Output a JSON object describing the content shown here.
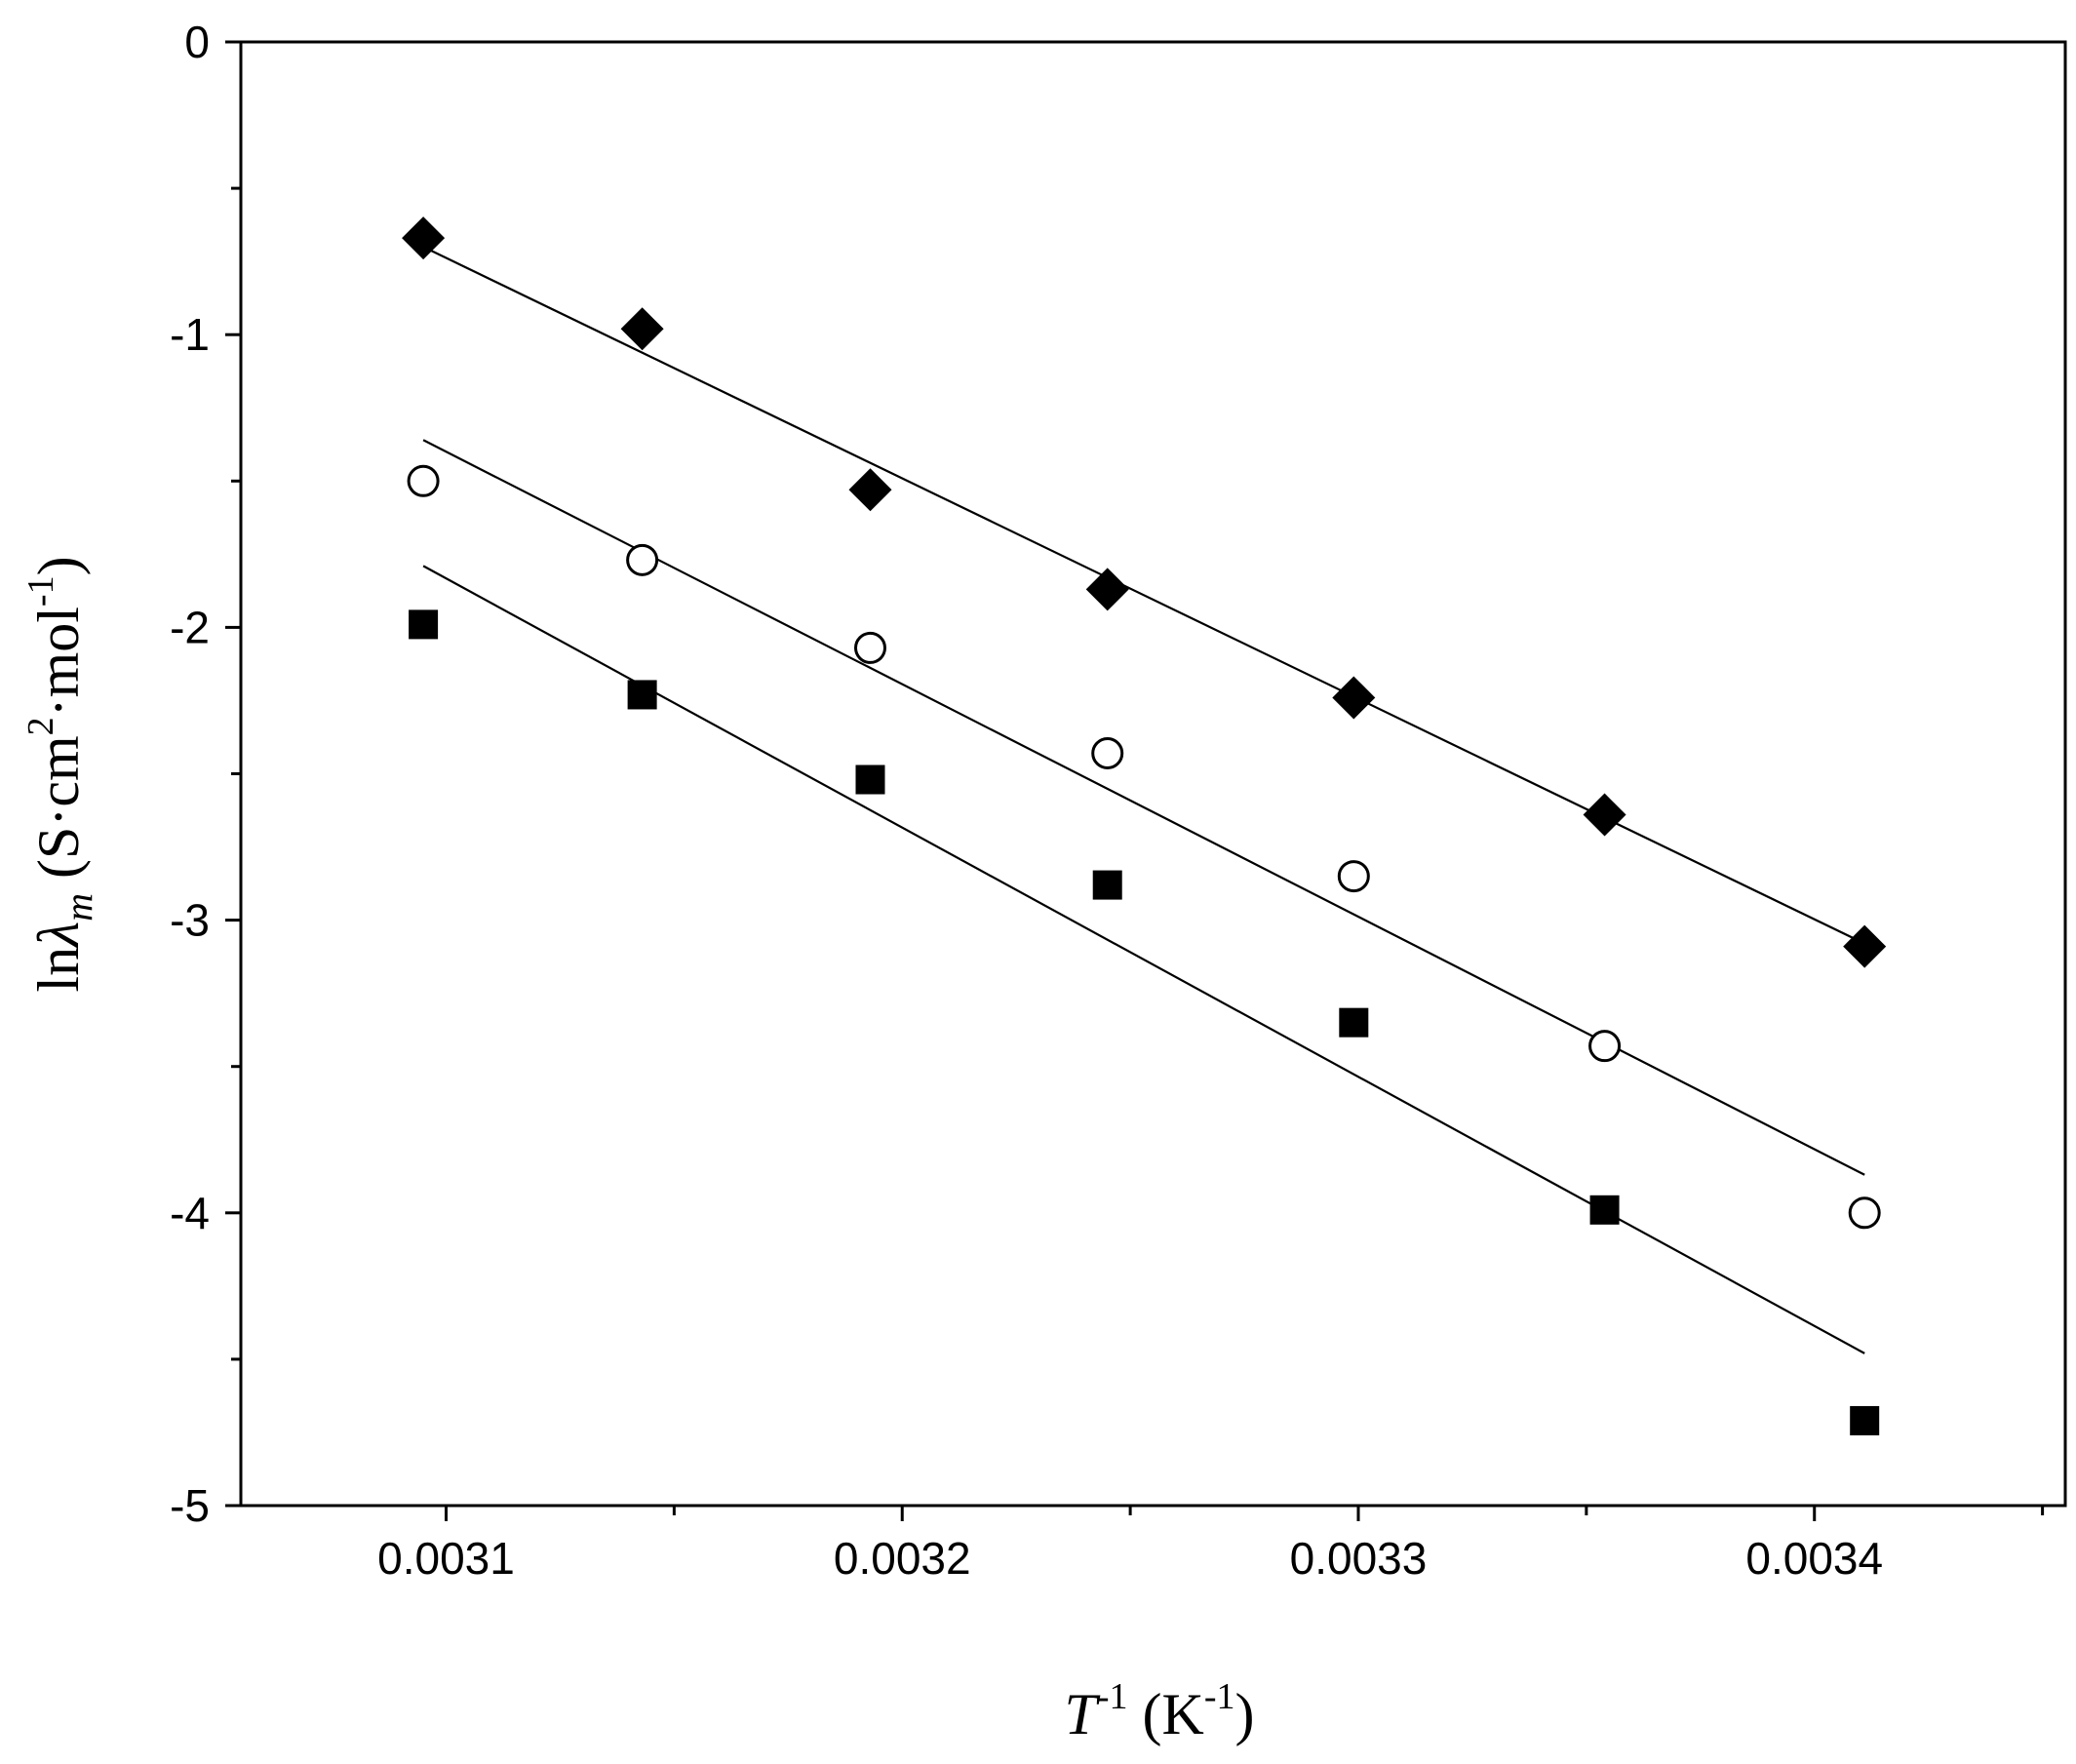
{
  "chart_data": {
    "type": "scatter",
    "title": "",
    "xlabel": {
      "base": "T",
      "sup1": "-1",
      "mid": " (K",
      "sup2": "-1",
      "end": ")"
    },
    "ylabel": {
      "pre": "ln",
      "lambda": "λ",
      "sub": "m",
      "mid": " (S·cm",
      "sup1": "2",
      "mid2": "·mol",
      "sup2": "-1",
      "end": ")"
    },
    "xlim": [
      0.003055,
      0.003455
    ],
    "ylim": [
      -5,
      0
    ],
    "xticks": [
      {
        "value": 0.0031,
        "label": "0.0031"
      },
      {
        "value": 0.0032,
        "label": "0.0032"
      },
      {
        "value": 0.0033,
        "label": "0.0033"
      },
      {
        "value": 0.0034,
        "label": "0.0034"
      }
    ],
    "yticks": [
      {
        "value": 0,
        "label": "0"
      },
      {
        "value": -1,
        "label": "-1"
      },
      {
        "value": -2,
        "label": "-2"
      },
      {
        "value": -3,
        "label": "-3"
      },
      {
        "value": -4,
        "label": "-4"
      },
      {
        "value": -5,
        "label": "-5"
      }
    ],
    "series": [
      {
        "marker": "diamond-filled",
        "x": [
          0.003095,
          0.003143,
          0.003193,
          0.003245,
          0.003299,
          0.003354,
          0.003411
        ],
        "y": [
          -0.67,
          -0.98,
          -1.53,
          -1.87,
          -2.24,
          -2.64,
          -3.09
        ],
        "fit": {
          "x": [
            0.003095,
            0.003411
          ],
          "y": [
            -0.7,
            -3.08
          ]
        }
      },
      {
        "marker": "circle-open",
        "x": [
          0.003095,
          0.003143,
          0.003193,
          0.003245,
          0.003299,
          0.003354,
          0.003411
        ],
        "y": [
          -1.5,
          -1.77,
          -2.07,
          -2.43,
          -2.85,
          -3.43,
          -4.0
        ],
        "fit": {
          "x": [
            0.003095,
            0.003411
          ],
          "y": [
            -1.36,
            -3.87
          ]
        }
      },
      {
        "marker": "square-filled",
        "x": [
          0.003095,
          0.003143,
          0.003193,
          0.003245,
          0.003299,
          0.003354,
          0.003411
        ],
        "y": [
          -1.99,
          -2.23,
          -2.52,
          -2.88,
          -3.35,
          -3.99,
          -4.71
        ],
        "fit": {
          "x": [
            0.003095,
            0.003411
          ],
          "y": [
            -1.79,
            -4.48
          ]
        }
      }
    ],
    "grid": false,
    "colors": {
      "ink": "#000000",
      "background": "#ffffff"
    }
  }
}
